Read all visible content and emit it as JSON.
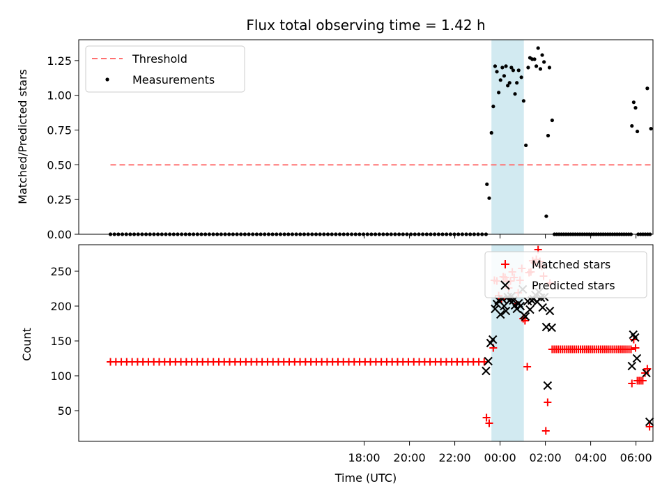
{
  "chart_data": {
    "type": "scatter",
    "title": "Flux total observing time = 1.42 h",
    "xlabel": "Time (UTC)",
    "x_unit": "hours relative to 00:00 UTC",
    "xlim": [
      -18.6,
      6.75
    ],
    "x_ticks": [
      {
        "x": -6,
        "label": "18:00"
      },
      {
        "x": -4,
        "label": "20:00"
      },
      {
        "x": -2,
        "label": "22:00"
      },
      {
        "x": 0,
        "label": "00:00"
      },
      {
        "x": 2,
        "label": "02:00"
      },
      {
        "x": 4,
        "label": "04:00"
      },
      {
        "x": 6,
        "label": "06:00"
      }
    ],
    "highlight_interval": {
      "start": -0.38,
      "end": 1.05,
      "color": "#add8e6"
    },
    "top": {
      "ylabel": "Matched/Predicted stars",
      "ylim": [
        0,
        1.4
      ],
      "y_ticks": [
        {
          "v": 0,
          "label": "0.00"
        },
        {
          "v": 0.25,
          "label": "0.25"
        },
        {
          "v": 0.5,
          "label": "0.50"
        },
        {
          "v": 0.75,
          "label": "0.75"
        },
        {
          "v": 1.0,
          "label": "1.00"
        },
        {
          "v": 1.25,
          "label": "1.25"
        }
      ],
      "legend": {
        "placement": "top-left",
        "entries": [
          "Threshold",
          "Measurements"
        ]
      },
      "threshold": {
        "name": "Threshold",
        "value": 0.5,
        "x_range": [
          -17.2,
          6.65
        ],
        "color": "#ff7070"
      },
      "series": [
        {
          "name": "Measurements",
          "color": "#000000",
          "points": [
            [
              -0.58,
              0.36
            ],
            [
              -0.48,
              0.26
            ],
            [
              -0.38,
              0.73
            ],
            [
              -0.3,
              0.92
            ],
            [
              -0.22,
              1.21
            ],
            [
              -0.14,
              1.17
            ],
            [
              -0.06,
              1.02
            ],
            [
              0.02,
              1.11
            ],
            [
              0.1,
              1.2
            ],
            [
              0.18,
              1.14
            ],
            [
              0.26,
              1.21
            ],
            [
              0.34,
              1.07
            ],
            [
              0.42,
              1.09
            ],
            [
              0.5,
              1.2
            ],
            [
              0.58,
              1.18
            ],
            [
              0.66,
              1.01
            ],
            [
              0.74,
              1.09
            ],
            [
              0.82,
              1.18
            ],
            [
              0.94,
              1.13
            ],
            [
              1.04,
              0.96
            ],
            [
              1.14,
              0.64
            ],
            [
              1.24,
              1.2
            ],
            [
              1.32,
              1.27
            ],
            [
              1.42,
              1.26
            ],
            [
              1.52,
              1.26
            ],
            [
              1.6,
              1.21
            ],
            [
              1.68,
              1.34
            ],
            [
              1.78,
              1.19
            ],
            [
              1.86,
              1.29
            ],
            [
              1.94,
              1.24
            ],
            [
              2.04,
              0.13
            ],
            [
              2.12,
              0.71
            ],
            [
              2.18,
              1.2
            ],
            [
              2.3,
              0.82
            ],
            [
              5.82,
              0.78
            ],
            [
              5.9,
              0.95
            ],
            [
              5.98,
              0.91
            ],
            [
              6.06,
              0.74
            ],
            [
              6.5,
              1.05
            ],
            [
              6.66,
              0.76
            ]
          ],
          "zero_runs": [
            {
              "start": -17.2,
              "end": -0.62,
              "count": 96
            },
            {
              "start": 2.4,
              "end": 5.78,
              "count": 34
            },
            {
              "start": 6.1,
              "end": 6.62,
              "count": 6
            }
          ]
        }
      ]
    },
    "bottom": {
      "ylabel": "Count",
      "ylim": [
        6,
        288
      ],
      "y_ticks": [
        {
          "v": 50,
          "label": "50"
        },
        {
          "v": 100,
          "label": "100"
        },
        {
          "v": 150,
          "label": "150"
        },
        {
          "v": 200,
          "label": "200"
        },
        {
          "v": 250,
          "label": "250"
        }
      ],
      "legend": {
        "placement": "top-right",
        "entries": [
          "Matched stars",
          "Predicted stars"
        ]
      },
      "series": [
        {
          "name": "Matched stars",
          "marker": "+",
          "color": "#ff0000",
          "points": [
            [
              -0.6,
              40
            ],
            [
              -0.48,
              32
            ],
            [
              -0.3,
              140
            ],
            [
              -0.25,
              237
            ],
            [
              -0.14,
              236
            ],
            [
              -0.06,
              215
            ],
            [
              0.06,
              210
            ],
            [
              0.14,
              242
            ],
            [
              0.22,
              241
            ],
            [
              0.3,
              235
            ],
            [
              0.38,
              226
            ],
            [
              0.46,
              236
            ],
            [
              0.54,
              249
            ],
            [
              0.62,
              241
            ],
            [
              0.72,
              203
            ],
            [
              0.8,
              219
            ],
            [
              0.88,
              237
            ],
            [
              0.96,
              254
            ],
            [
              1.02,
              182
            ],
            [
              1.1,
              179
            ],
            [
              1.2,
              113
            ],
            [
              1.28,
              248
            ],
            [
              1.36,
              249
            ],
            [
              1.44,
              265
            ],
            [
              1.52,
              262
            ],
            [
              1.6,
              267
            ],
            [
              1.68,
              281
            ],
            [
              1.76,
              264
            ],
            [
              1.84,
              257
            ],
            [
              1.92,
              243
            ],
            [
              2.02,
              21
            ],
            [
              2.1,
              62
            ],
            [
              2.2,
              233
            ],
            [
              5.82,
              89
            ],
            [
              5.9,
              152
            ],
            [
              5.98,
              140
            ],
            [
              6.06,
              93
            ],
            [
              6.14,
              93
            ],
            [
              6.22,
              93
            ],
            [
              6.3,
              93
            ],
            [
              6.4,
              104
            ],
            [
              6.5,
              110
            ],
            [
              6.6,
              27
            ]
          ],
          "constant_runs": [
            {
              "start": -17.2,
              "end": -0.7,
              "count": 70,
              "value": 120
            },
            {
              "start": 2.3,
              "end": 5.78,
              "count": 40,
              "value": 138
            }
          ]
        },
        {
          "name": "Predicted stars",
          "marker": "x",
          "color": "#000000",
          "points": [
            [
              -0.62,
              107
            ],
            [
              -0.52,
              121
            ],
            [
              -0.42,
              147
            ],
            [
              -0.32,
              152
            ],
            [
              -0.22,
              196
            ],
            [
              -0.14,
              203
            ],
            [
              -0.06,
              208
            ],
            [
              0.02,
              188
            ],
            [
              0.1,
              210
            ],
            [
              0.18,
              200
            ],
            [
              0.26,
              193
            ],
            [
              0.34,
              213
            ],
            [
              0.42,
              208
            ],
            [
              0.5,
              214
            ],
            [
              0.58,
              208
            ],
            [
              0.66,
              201
            ],
            [
              0.74,
              196
            ],
            [
              0.82,
              204
            ],
            [
              0.9,
              200
            ],
            [
              1.0,
              224
            ],
            [
              1.06,
              187
            ],
            [
              1.12,
              185
            ],
            [
              1.22,
              207
            ],
            [
              1.32,
              195
            ],
            [
              1.4,
              208
            ],
            [
              1.48,
              210
            ],
            [
              1.56,
              216
            ],
            [
              1.64,
              206
            ],
            [
              1.72,
              220
            ],
            [
              1.8,
              212
            ],
            [
              1.88,
              198
            ],
            [
              1.96,
              213
            ],
            [
              2.04,
              170
            ],
            [
              2.1,
              86
            ],
            [
              2.2,
              193
            ],
            [
              2.28,
              169
            ],
            [
              5.82,
              114
            ],
            [
              5.88,
              159
            ],
            [
              5.96,
              155
            ],
            [
              6.04,
              125
            ],
            [
              6.46,
              104
            ],
            [
              6.6,
              34
            ]
          ]
        }
      ]
    }
  }
}
